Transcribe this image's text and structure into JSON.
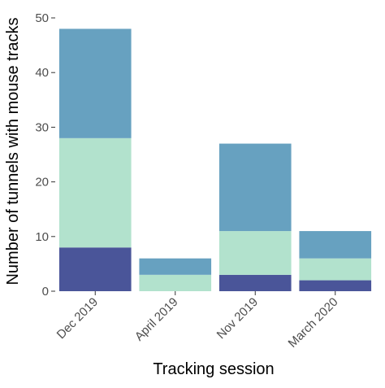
{
  "chart_data": {
    "type": "bar",
    "stacked": true,
    "xlabel": "Tracking session",
    "ylabel": "Number of tunnels with mouse tracks",
    "categories": [
      "Dec 2019",
      "April 2019",
      "Nov 2019",
      "March 2020"
    ],
    "ylim": [
      0,
      50
    ],
    "yticks": [
      0,
      10,
      20,
      30,
      40,
      50
    ],
    "series": [
      {
        "values": [
          8,
          0,
          3,
          2
        ],
        "color": "#4a5599"
      },
      {
        "values": [
          20,
          3,
          8,
          4
        ],
        "color": "#b2e2cd"
      },
      {
        "values": [
          20,
          3,
          16,
          5
        ],
        "color": "#67a1c0"
      }
    ],
    "legend": "none",
    "grid": false
  }
}
